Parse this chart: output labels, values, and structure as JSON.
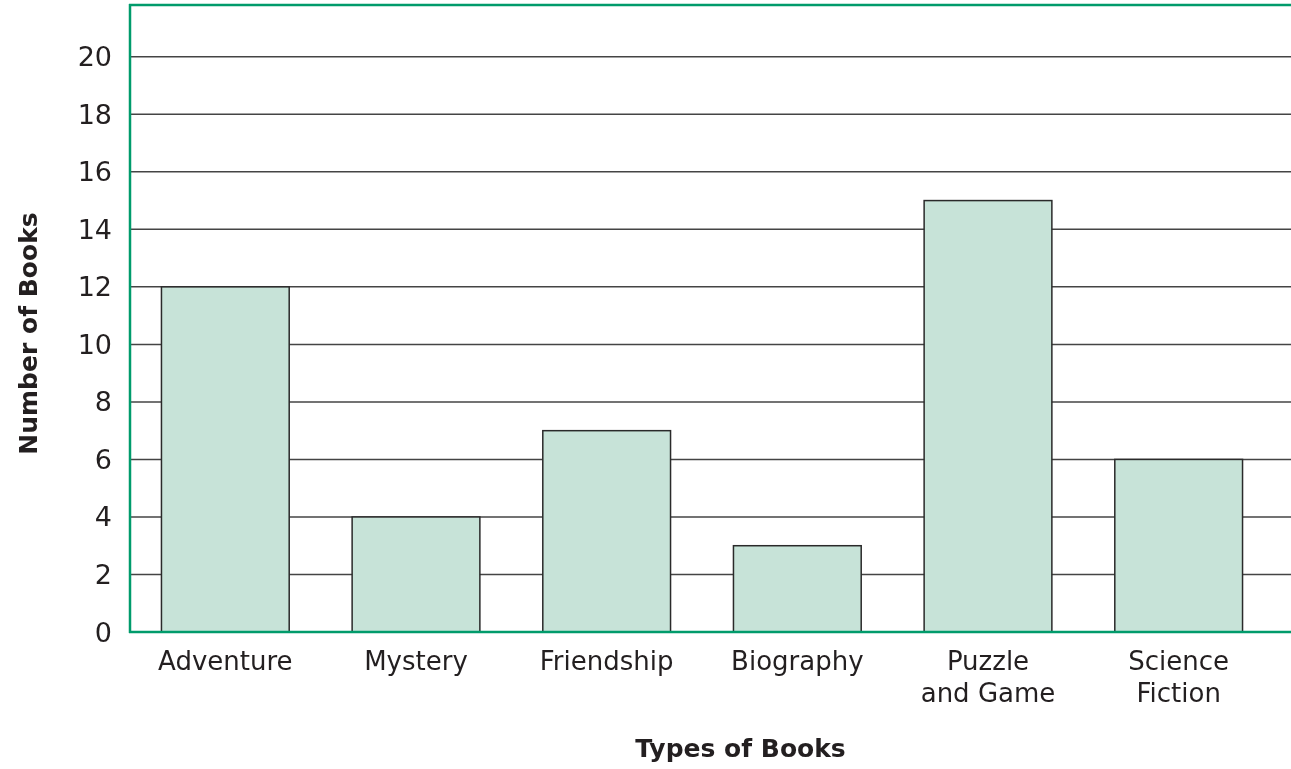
{
  "chart_data": {
    "type": "bar",
    "xlabel": "Types of Books",
    "ylabel": "Number of Books",
    "categories": [
      "Adventure",
      "Mystery",
      "Friendship",
      "Biography",
      "Puzzle and Game",
      "Science Fiction"
    ],
    "values": [
      12,
      4,
      7,
      3,
      15,
      6
    ],
    "color": "#c7e3d8",
    "ylim": [
      0,
      21.8
    ],
    "yticks": [
      0,
      2,
      4,
      6,
      8,
      10,
      12,
      14,
      16,
      18,
      20
    ],
    "grid": "y"
  }
}
